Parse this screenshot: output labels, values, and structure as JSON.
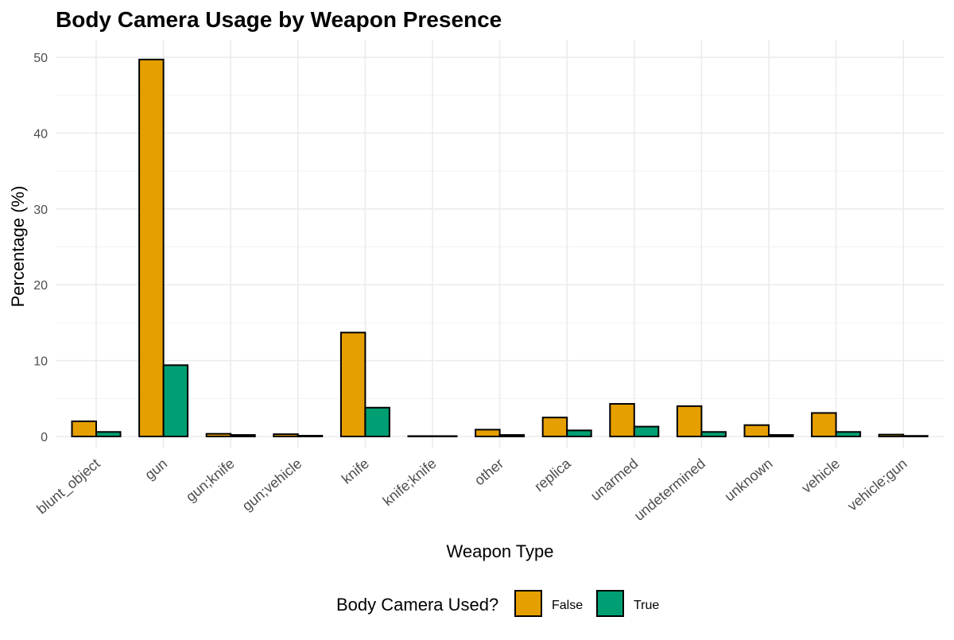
{
  "chart_data": {
    "type": "bar",
    "title": "Body Camera Usage by Weapon Presence",
    "xlabel": "Weapon Type",
    "ylabel": "Percentage (%)",
    "ylim": [
      0,
      52
    ],
    "yticks": [
      0,
      10,
      20,
      30,
      40,
      50
    ],
    "grid": true,
    "legend_placement": "bottom",
    "legend_title": "Body Camera Used?",
    "categories": [
      "blunt_object",
      "gun",
      "gun;knife",
      "gun;vehicle",
      "knife",
      "knife;knife",
      "other",
      "replica",
      "unarmed",
      "undetermined",
      "unknown",
      "vehicle",
      "vehicle;gun"
    ],
    "series": [
      {
        "name": "False",
        "color": "#E69F00",
        "values": [
          2.0,
          49.7,
          0.35,
          0.3,
          13.7,
          0.04,
          0.9,
          2.5,
          4.3,
          4.0,
          1.5,
          3.1,
          0.25
        ]
      },
      {
        "name": "True",
        "color": "#009E73",
        "values": [
          0.6,
          9.4,
          0.2,
          0.1,
          3.8,
          0.04,
          0.2,
          0.8,
          1.3,
          0.6,
          0.2,
          0.6,
          0.08
        ]
      }
    ]
  }
}
